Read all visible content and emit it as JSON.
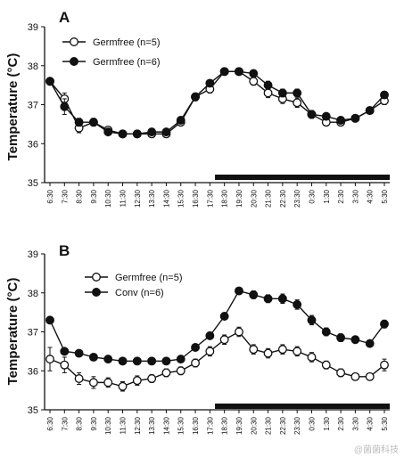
{
  "chart_data": [
    {
      "type": "line",
      "panel_label": "A",
      "ylabel": "Temperature (°C)",
      "ylim": [
        35,
        39
      ],
      "yticks": [
        "35",
        "36",
        "37",
        "38",
        "39"
      ],
      "categories": [
        "6:30",
        "7:30",
        "8:30",
        "9:30",
        "10:30",
        "11:30",
        "12:30",
        "13:30",
        "14:30",
        "15:30",
        "16:30",
        "17:30",
        "18:30",
        "19:30",
        "20:30",
        "21:30",
        "22:30",
        "23:30",
        "0:30",
        "1:30",
        "2:30",
        "3:30",
        "4:30",
        "5:30"
      ],
      "legend_position": "top-left",
      "dark_bar_range": [
        "17:30",
        "5:30"
      ],
      "series": [
        {
          "name": "Germfree (n=5)",
          "marker": "open-circle",
          "values": [
            37.6,
            37.15,
            36.4,
            36.55,
            36.35,
            36.25,
            36.25,
            36.25,
            36.25,
            36.55,
            37.2,
            37.4,
            37.85,
            37.85,
            37.6,
            37.3,
            37.15,
            37.05,
            36.75,
            36.55,
            36.55,
            36.65,
            36.85,
            37.1
          ],
          "errors": [
            0.05,
            0.15,
            0.12,
            0.1,
            0.08,
            0.06,
            0.06,
            0.06,
            0.06,
            0.08,
            0.1,
            0.1,
            0.08,
            0.08,
            0.1,
            0.12,
            0.12,
            0.12,
            0.1,
            0.08,
            0.08,
            0.08,
            0.08,
            0.1
          ]
        },
        {
          "name": "Germfree (n=6)",
          "marker": "filled-circle",
          "values": [
            37.6,
            36.95,
            36.55,
            36.55,
            36.3,
            36.25,
            36.25,
            36.3,
            36.3,
            36.6,
            37.2,
            37.55,
            37.85,
            37.85,
            37.8,
            37.5,
            37.3,
            37.3,
            36.75,
            36.7,
            36.6,
            36.65,
            36.85,
            37.25
          ],
          "errors": [
            0.05,
            0.2,
            0.1,
            0.08,
            0.06,
            0.05,
            0.05,
            0.05,
            0.05,
            0.06,
            0.08,
            0.08,
            0.06,
            0.06,
            0.08,
            0.1,
            0.1,
            0.1,
            0.08,
            0.08,
            0.08,
            0.08,
            0.08,
            0.08
          ]
        }
      ]
    },
    {
      "type": "line",
      "panel_label": "B",
      "ylabel": "Temperature (°C)",
      "ylim": [
        35,
        39
      ],
      "yticks": [
        "35",
        "36",
        "37",
        "38",
        "39"
      ],
      "categories": [
        "6:30",
        "7:30",
        "8:30",
        "9:30",
        "10:30",
        "11:30",
        "12:30",
        "13:30",
        "14:30",
        "15:30",
        "16:30",
        "17:30",
        "18:30",
        "19:30",
        "20:30",
        "21:30",
        "22:30",
        "23:30",
        "0:30",
        "1:30",
        "2:30",
        "3:30",
        "4:30",
        "5:30"
      ],
      "legend_position": "top-left",
      "dark_bar_range": [
        "17:30",
        "5:30"
      ],
      "series": [
        {
          "name": "Germfree (n=5)",
          "marker": "open-circle",
          "values": [
            36.3,
            36.15,
            35.8,
            35.7,
            35.7,
            35.6,
            35.75,
            35.8,
            35.95,
            36.0,
            36.2,
            36.5,
            36.8,
            37.0,
            36.55,
            36.45,
            36.55,
            36.5,
            36.35,
            36.15,
            35.95,
            35.85,
            35.85,
            36.15
          ],
          "errors": [
            0.3,
            0.2,
            0.15,
            0.15,
            0.12,
            0.12,
            0.12,
            0.1,
            0.1,
            0.1,
            0.1,
            0.12,
            0.12,
            0.12,
            0.12,
            0.12,
            0.12,
            0.12,
            0.12,
            0.1,
            0.1,
            0.08,
            0.08,
            0.15
          ]
        },
        {
          "name": "Conv (n=6)",
          "marker": "filled-circle",
          "values": [
            37.3,
            36.5,
            36.45,
            36.35,
            36.3,
            36.25,
            36.25,
            36.25,
            36.25,
            36.3,
            36.6,
            36.9,
            37.4,
            38.05,
            37.95,
            37.85,
            37.85,
            37.7,
            37.3,
            37.0,
            36.85,
            36.8,
            36.7,
            37.2
          ],
          "errors": [
            0.05,
            0.08,
            0.06,
            0.06,
            0.05,
            0.05,
            0.05,
            0.05,
            0.05,
            0.06,
            0.06,
            0.08,
            0.08,
            0.08,
            0.1,
            0.1,
            0.12,
            0.12,
            0.12,
            0.1,
            0.1,
            0.08,
            0.08,
            0.1
          ]
        }
      ]
    }
  ],
  "watermark": "@菌菌科技"
}
